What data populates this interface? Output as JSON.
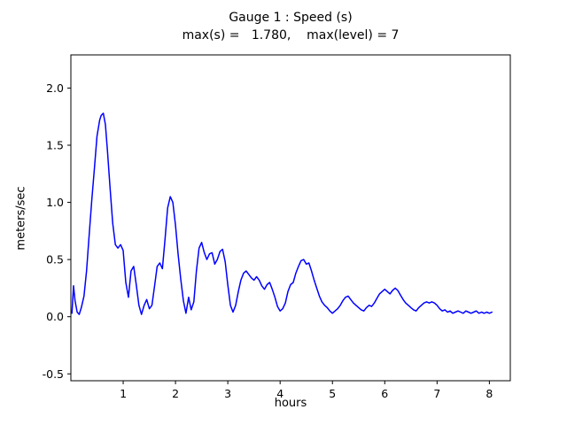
{
  "chart_data": {
    "type": "line",
    "title": "Gauge 1 : Speed (s)",
    "subtitle": "max(s) =   1.780,    max(level) = 7",
    "xlabel": "hours",
    "ylabel": "meters/sec",
    "xlim": [
      0,
      8.4
    ],
    "ylim": [
      -0.56,
      2.29
    ],
    "xticks": [
      1,
      2,
      3,
      4,
      5,
      6,
      7,
      8
    ],
    "yticks": [
      -0.5,
      0.0,
      0.5,
      1.0,
      1.5,
      2.0
    ],
    "grid": false,
    "legend": "none",
    "line_color": "#0000ff",
    "frame_color": "#000000",
    "max_s": 1.78,
    "max_level": 7,
    "series": [
      {
        "name": "speed",
        "points": [
          [
            0.02,
            0.03
          ],
          [
            0.05,
            0.27
          ],
          [
            0.08,
            0.14
          ],
          [
            0.12,
            0.04
          ],
          [
            0.16,
            0.02
          ],
          [
            0.2,
            0.08
          ],
          [
            0.25,
            0.18
          ],
          [
            0.3,
            0.4
          ],
          [
            0.35,
            0.72
          ],
          [
            0.4,
            1.02
          ],
          [
            0.45,
            1.3
          ],
          [
            0.5,
            1.58
          ],
          [
            0.55,
            1.72
          ],
          [
            0.58,
            1.76
          ],
          [
            0.62,
            1.78
          ],
          [
            0.66,
            1.68
          ],
          [
            0.7,
            1.45
          ],
          [
            0.75,
            1.12
          ],
          [
            0.8,
            0.82
          ],
          [
            0.85,
            0.63
          ],
          [
            0.9,
            0.6
          ],
          [
            0.95,
            0.63
          ],
          [
            1.0,
            0.58
          ],
          [
            1.05,
            0.3
          ],
          [
            1.1,
            0.17
          ],
          [
            1.15,
            0.4
          ],
          [
            1.2,
            0.44
          ],
          [
            1.25,
            0.28
          ],
          [
            1.3,
            0.1
          ],
          [
            1.35,
            0.02
          ],
          [
            1.4,
            0.1
          ],
          [
            1.45,
            0.15
          ],
          [
            1.5,
            0.07
          ],
          [
            1.55,
            0.1
          ],
          [
            1.6,
            0.27
          ],
          [
            1.65,
            0.44
          ],
          [
            1.7,
            0.47
          ],
          [
            1.75,
            0.42
          ],
          [
            1.8,
            0.68
          ],
          [
            1.85,
            0.95
          ],
          [
            1.9,
            1.05
          ],
          [
            1.95,
            1.0
          ],
          [
            2.0,
            0.8
          ],
          [
            2.05,
            0.55
          ],
          [
            2.1,
            0.33
          ],
          [
            2.15,
            0.14
          ],
          [
            2.2,
            0.03
          ],
          [
            2.25,
            0.17
          ],
          [
            2.3,
            0.06
          ],
          [
            2.35,
            0.13
          ],
          [
            2.4,
            0.4
          ],
          [
            2.45,
            0.6
          ],
          [
            2.5,
            0.65
          ],
          [
            2.55,
            0.56
          ],
          [
            2.6,
            0.5
          ],
          [
            2.65,
            0.55
          ],
          [
            2.7,
            0.56
          ],
          [
            2.75,
            0.46
          ],
          [
            2.8,
            0.5
          ],
          [
            2.85,
            0.57
          ],
          [
            2.9,
            0.59
          ],
          [
            2.95,
            0.48
          ],
          [
            3.0,
            0.28
          ],
          [
            3.05,
            0.1
          ],
          [
            3.1,
            0.04
          ],
          [
            3.15,
            0.1
          ],
          [
            3.2,
            0.22
          ],
          [
            3.25,
            0.32
          ],
          [
            3.3,
            0.38
          ],
          [
            3.35,
            0.4
          ],
          [
            3.4,
            0.37
          ],
          [
            3.45,
            0.34
          ],
          [
            3.5,
            0.32
          ],
          [
            3.55,
            0.35
          ],
          [
            3.6,
            0.32
          ],
          [
            3.65,
            0.27
          ],
          [
            3.7,
            0.24
          ],
          [
            3.75,
            0.28
          ],
          [
            3.8,
            0.3
          ],
          [
            3.85,
            0.24
          ],
          [
            3.9,
            0.17
          ],
          [
            3.95,
            0.09
          ],
          [
            4.0,
            0.05
          ],
          [
            4.05,
            0.07
          ],
          [
            4.1,
            0.12
          ],
          [
            4.15,
            0.22
          ],
          [
            4.2,
            0.28
          ],
          [
            4.25,
            0.3
          ],
          [
            4.3,
            0.38
          ],
          [
            4.35,
            0.44
          ],
          [
            4.4,
            0.49
          ],
          [
            4.45,
            0.5
          ],
          [
            4.5,
            0.46
          ],
          [
            4.55,
            0.47
          ],
          [
            4.6,
            0.4
          ],
          [
            4.65,
            0.32
          ],
          [
            4.7,
            0.25
          ],
          [
            4.75,
            0.18
          ],
          [
            4.8,
            0.13
          ],
          [
            4.85,
            0.1
          ],
          [
            4.9,
            0.08
          ],
          [
            4.95,
            0.05
          ],
          [
            5.0,
            0.03
          ],
          [
            5.05,
            0.05
          ],
          [
            5.1,
            0.07
          ],
          [
            5.15,
            0.1
          ],
          [
            5.2,
            0.14
          ],
          [
            5.25,
            0.17
          ],
          [
            5.3,
            0.18
          ],
          [
            5.35,
            0.15
          ],
          [
            5.4,
            0.12
          ],
          [
            5.45,
            0.1
          ],
          [
            5.5,
            0.08
          ],
          [
            5.55,
            0.06
          ],
          [
            5.6,
            0.05
          ],
          [
            5.65,
            0.08
          ],
          [
            5.7,
            0.1
          ],
          [
            5.75,
            0.09
          ],
          [
            5.8,
            0.12
          ],
          [
            5.85,
            0.16
          ],
          [
            5.9,
            0.2
          ],
          [
            5.95,
            0.22
          ],
          [
            6.0,
            0.24
          ],
          [
            6.05,
            0.22
          ],
          [
            6.1,
            0.2
          ],
          [
            6.15,
            0.23
          ],
          [
            6.2,
            0.25
          ],
          [
            6.25,
            0.23
          ],
          [
            6.3,
            0.19
          ],
          [
            6.35,
            0.15
          ],
          [
            6.4,
            0.12
          ],
          [
            6.45,
            0.1
          ],
          [
            6.5,
            0.08
          ],
          [
            6.55,
            0.06
          ],
          [
            6.6,
            0.05
          ],
          [
            6.65,
            0.08
          ],
          [
            6.7,
            0.1
          ],
          [
            6.75,
            0.12
          ],
          [
            6.8,
            0.13
          ],
          [
            6.85,
            0.12
          ],
          [
            6.9,
            0.13
          ],
          [
            6.95,
            0.12
          ],
          [
            7.0,
            0.1
          ],
          [
            7.05,
            0.07
          ],
          [
            7.1,
            0.05
          ],
          [
            7.15,
            0.06
          ],
          [
            7.2,
            0.04
          ],
          [
            7.25,
            0.05
          ],
          [
            7.3,
            0.03
          ],
          [
            7.35,
            0.04
          ],
          [
            7.4,
            0.05
          ],
          [
            7.45,
            0.04
          ],
          [
            7.5,
            0.03
          ],
          [
            7.55,
            0.05
          ],
          [
            7.6,
            0.04
          ],
          [
            7.65,
            0.03
          ],
          [
            7.7,
            0.04
          ],
          [
            7.75,
            0.05
          ],
          [
            7.8,
            0.03
          ],
          [
            7.85,
            0.04
          ],
          [
            7.9,
            0.03
          ],
          [
            7.95,
            0.04
          ],
          [
            8.0,
            0.03
          ],
          [
            8.05,
            0.04
          ]
        ]
      }
    ]
  }
}
